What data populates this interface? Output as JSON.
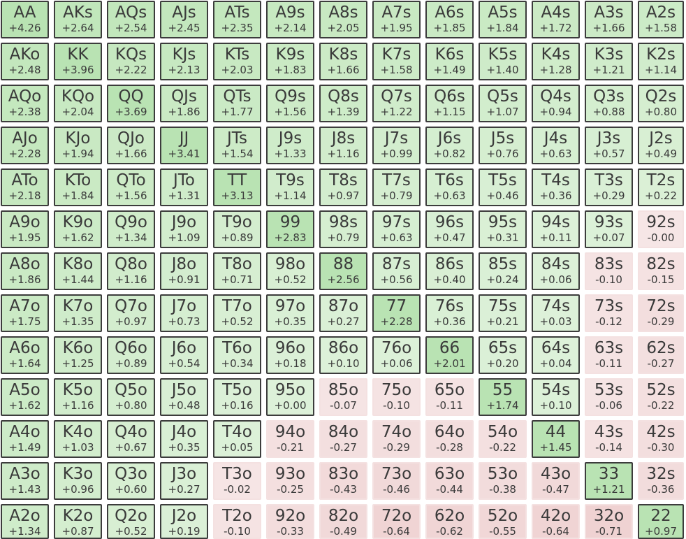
{
  "matrix": {
    "ranks": [
      "A",
      "K",
      "Q",
      "J",
      "T",
      "9",
      "8",
      "7",
      "6",
      "5",
      "4",
      "3",
      "2"
    ],
    "rows": [
      {
        "hands": [
          "AA",
          "AKs",
          "AQs",
          "AJs",
          "ATs",
          "A9s",
          "A8s",
          "A7s",
          "A6s",
          "A5s",
          "A4s",
          "A3s",
          "A2s"
        ],
        "ev": [
          "+4.26",
          "+2.64",
          "+2.54",
          "+2.45",
          "+2.35",
          "+2.14",
          "+2.05",
          "+1.95",
          "+1.85",
          "+1.84",
          "+1.72",
          "+1.66",
          "+1.58"
        ]
      },
      {
        "hands": [
          "AKo",
          "KK",
          "KQs",
          "KJs",
          "KTs",
          "K9s",
          "K8s",
          "K7s",
          "K6s",
          "K5s",
          "K4s",
          "K3s",
          "K2s"
        ],
        "ev": [
          "+2.48",
          "+3.96",
          "+2.22",
          "+2.13",
          "+2.03",
          "+1.83",
          "+1.66",
          "+1.58",
          "+1.49",
          "+1.40",
          "+1.28",
          "+1.21",
          "+1.14"
        ]
      },
      {
        "hands": [
          "AQo",
          "KQo",
          "QQ",
          "QJs",
          "QTs",
          "Q9s",
          "Q8s",
          "Q7s",
          "Q6s",
          "Q5s",
          "Q4s",
          "Q3s",
          "Q2s"
        ],
        "ev": [
          "+2.38",
          "+2.04",
          "+3.69",
          "+1.86",
          "+1.77",
          "+1.56",
          "+1.39",
          "+1.22",
          "+1.15",
          "+1.07",
          "+0.94",
          "+0.88",
          "+0.80"
        ]
      },
      {
        "hands": [
          "AJo",
          "KJo",
          "QJo",
          "JJ",
          "JTs",
          "J9s",
          "J8s",
          "J7s",
          "J6s",
          "J5s",
          "J4s",
          "J3s",
          "J2s"
        ],
        "ev": [
          "+2.28",
          "+1.94",
          "+1.66",
          "+3.41",
          "+1.54",
          "+1.33",
          "+1.16",
          "+0.99",
          "+0.82",
          "+0.76",
          "+0.63",
          "+0.57",
          "+0.49"
        ]
      },
      {
        "hands": [
          "ATo",
          "KTo",
          "QTo",
          "JTo",
          "TT",
          "T9s",
          "T8s",
          "T7s",
          "T6s",
          "T5s",
          "T4s",
          "T3s",
          "T2s"
        ],
        "ev": [
          "+2.18",
          "+1.84",
          "+1.56",
          "+1.31",
          "+3.13",
          "+1.14",
          "+0.97",
          "+0.79",
          "+0.63",
          "+0.46",
          "+0.36",
          "+0.29",
          "+0.22"
        ]
      },
      {
        "hands": [
          "A9o",
          "K9o",
          "Q9o",
          "J9o",
          "T9o",
          "99",
          "98s",
          "97s",
          "96s",
          "95s",
          "94s",
          "93s",
          "92s"
        ],
        "ev": [
          "+1.95",
          "+1.62",
          "+1.34",
          "+1.09",
          "+0.89",
          "+2.83",
          "+0.79",
          "+0.63",
          "+0.47",
          "+0.31",
          "+0.11",
          "+0.07",
          "-0.00"
        ]
      },
      {
        "hands": [
          "A8o",
          "K8o",
          "Q8o",
          "J8o",
          "T8o",
          "98o",
          "88",
          "87s",
          "86s",
          "85s",
          "84s",
          "83s",
          "82s"
        ],
        "ev": [
          "+1.86",
          "+1.44",
          "+1.16",
          "+0.91",
          "+0.71",
          "+0.52",
          "+2.56",
          "+0.56",
          "+0.40",
          "+0.24",
          "+0.06",
          "-0.10",
          "-0.15"
        ]
      },
      {
        "hands": [
          "A7o",
          "K7o",
          "Q7o",
          "J7o",
          "T7o",
          "97o",
          "87o",
          "77",
          "76s",
          "75s",
          "74s",
          "73s",
          "72s"
        ],
        "ev": [
          "+1.75",
          "+1.35",
          "+0.97",
          "+0.73",
          "+0.52",
          "+0.35",
          "+0.27",
          "+2.28",
          "+0.36",
          "+0.21",
          "+0.03",
          "-0.12",
          "-0.29"
        ]
      },
      {
        "hands": [
          "A6o",
          "K6o",
          "Q6o",
          "J6o",
          "T6o",
          "96o",
          "86o",
          "76o",
          "66",
          "65s",
          "64s",
          "63s",
          "62s"
        ],
        "ev": [
          "+1.64",
          "+1.25",
          "+0.89",
          "+0.54",
          "+0.34",
          "+0.18",
          "+0.10",
          "+0.06",
          "+2.01",
          "+0.20",
          "+0.04",
          "-0.11",
          "-0.27"
        ]
      },
      {
        "hands": [
          "A5o",
          "K5o",
          "Q5o",
          "J5o",
          "T5o",
          "95o",
          "85o",
          "75o",
          "65o",
          "55",
          "54s",
          "53s",
          "52s"
        ],
        "ev": [
          "+1.62",
          "+1.16",
          "+0.80",
          "+0.48",
          "+0.16",
          "+0.00",
          "-0.07",
          "-0.10",
          "-0.11",
          "+1.74",
          "+0.10",
          "-0.06",
          "-0.22"
        ]
      },
      {
        "hands": [
          "A4o",
          "K4o",
          "Q4o",
          "J4o",
          "T4o",
          "94o",
          "84o",
          "74o",
          "64o",
          "54o",
          "44",
          "43s",
          "42s"
        ],
        "ev": [
          "+1.49",
          "+1.03",
          "+0.67",
          "+0.35",
          "+0.05",
          "-0.21",
          "-0.27",
          "-0.29",
          "-0.28",
          "-0.22",
          "+1.45",
          "-0.14",
          "-0.30"
        ]
      },
      {
        "hands": [
          "A3o",
          "K3o",
          "Q3o",
          "J3o",
          "T3o",
          "93o",
          "83o",
          "73o",
          "63o",
          "53o",
          "43o",
          "33",
          "32s"
        ],
        "ev": [
          "+1.43",
          "+0.96",
          "+0.60",
          "+0.27",
          "-0.02",
          "-0.25",
          "-0.43",
          "-0.46",
          "-0.44",
          "-0.38",
          "-0.47",
          "+1.21",
          "-0.36"
        ]
      },
      {
        "hands": [
          "A2o",
          "K2o",
          "Q2o",
          "J2o",
          "T2o",
          "92o",
          "82o",
          "72o",
          "62o",
          "52o",
          "42o",
          "32o",
          "22"
        ],
        "ev": [
          "+1.34",
          "+0.87",
          "+0.52",
          "+0.19",
          "-0.10",
          "-0.33",
          "-0.49",
          "-0.64",
          "-0.62",
          "-0.55",
          "-0.64",
          "-0.71",
          "+0.97"
        ]
      }
    ]
  },
  "colors": {
    "positive_fill": "#d7efd3",
    "positive_border": "#3c3c3c",
    "pair_fill": "#b9e3b3",
    "negative_fill": "#f2dada",
    "text": "#3a3a3a"
  }
}
